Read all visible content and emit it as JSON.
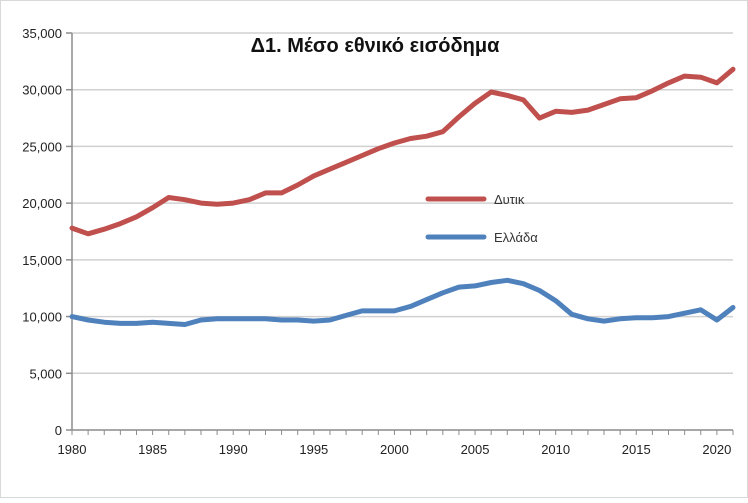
{
  "chart_data": {
    "type": "line",
    "title": "Δ1. Μέσο εθνικό εισόδημα",
    "xlabel": "",
    "ylabel": "",
    "xlim": [
      1980,
      2021
    ],
    "ylim": [
      0,
      35000
    ],
    "x_ticks": [
      1980,
      1985,
      1990,
      1995,
      2000,
      2005,
      2010,
      2015,
      2020
    ],
    "y_ticks": [
      0,
      5000,
      10000,
      15000,
      20000,
      25000,
      30000,
      35000
    ],
    "y_tick_labels": [
      "0",
      "5,000",
      "10,000",
      "15,000",
      "20,000",
      "25,000",
      "30,000",
      "35,000"
    ],
    "x_tick_labels": [
      "1980",
      "1985",
      "1990",
      "1995",
      "2000",
      "2005",
      "2010",
      "2015",
      "2020"
    ],
    "grid": "horizontal",
    "legend_position": "center-right",
    "x": [
      1980,
      1981,
      1982,
      1983,
      1984,
      1985,
      1986,
      1987,
      1988,
      1989,
      1990,
      1991,
      1992,
      1993,
      1994,
      1995,
      1996,
      1997,
      1998,
      1999,
      2000,
      2001,
      2002,
      2003,
      2004,
      2005,
      2006,
      2007,
      2008,
      2009,
      2010,
      2011,
      2012,
      2013,
      2014,
      2015,
      2016,
      2017,
      2018,
      2019,
      2020,
      2021
    ],
    "series": [
      {
        "name": "Δυτικ",
        "color": "#c0504d",
        "values": [
          17800,
          17300,
          17700,
          18200,
          18800,
          19600,
          20500,
          20300,
          20000,
          19900,
          20000,
          20300,
          20900,
          20900,
          21600,
          22400,
          23000,
          23600,
          24200,
          24800,
          25300,
          25700,
          25900,
          26300,
          27600,
          28800,
          29800,
          29500,
          29100,
          27500,
          28100,
          28000,
          28200,
          28700,
          29200,
          29300,
          29900,
          30600,
          31200,
          31100,
          30600,
          31800
        ]
      },
      {
        "name": "Ελλάδα",
        "color": "#4f81bd",
        "values": [
          10000,
          9700,
          9500,
          9400,
          9400,
          9500,
          9400,
          9300,
          9700,
          9800,
          9800,
          9800,
          9800,
          9700,
          9700,
          9600,
          9700,
          10100,
          10500,
          10500,
          10500,
          10900,
          11500,
          12100,
          12600,
          12700,
          13000,
          13200,
          12900,
          12300,
          11400,
          10200,
          9800,
          9600,
          9800,
          9900,
          9900,
          10000,
          10300,
          10600,
          9700,
          10800
        ]
      }
    ]
  }
}
